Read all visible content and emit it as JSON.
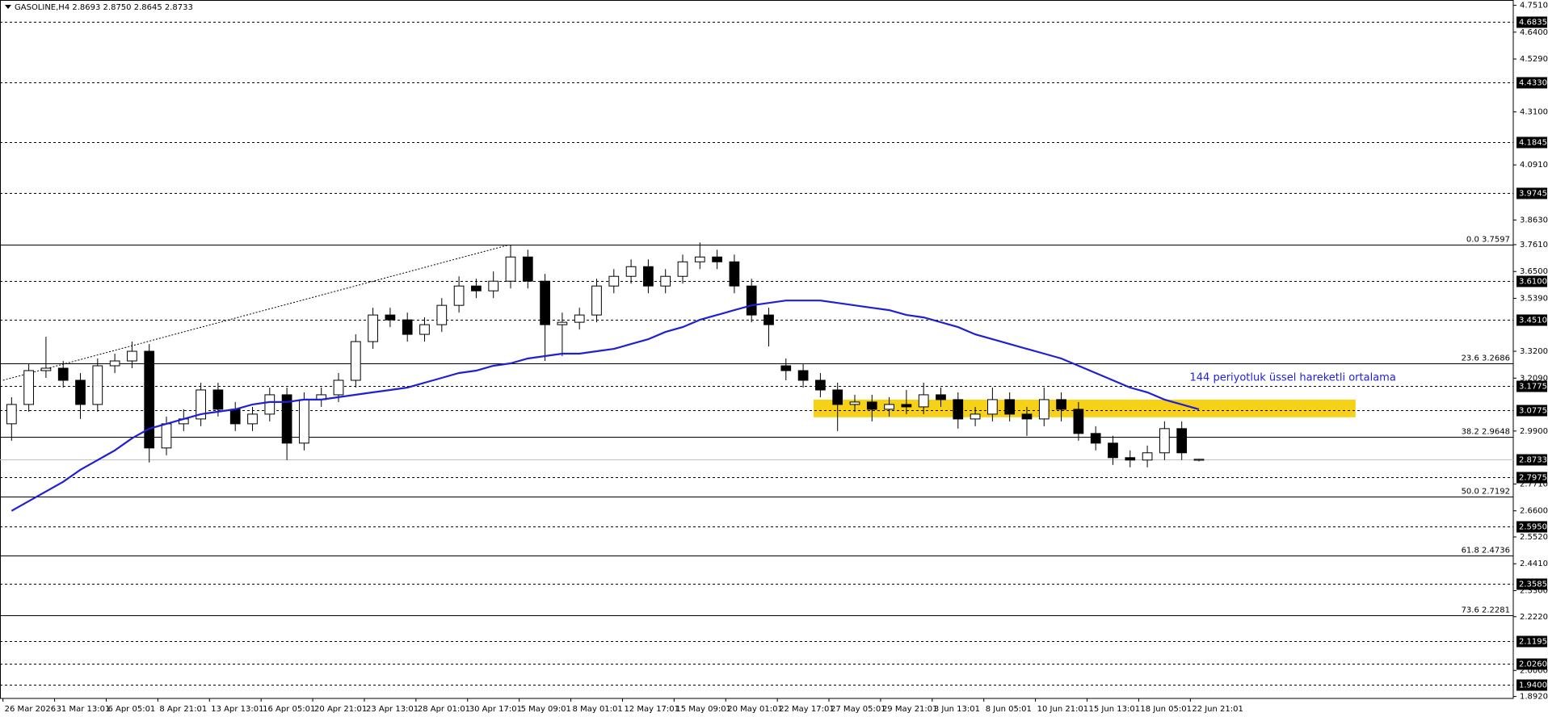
{
  "chart_data": {
    "type": "candlestick",
    "title": "GASOLINE,H4  2.8693 2.8750 2.8645 2.8733",
    "categories": [
      "26 Mar 2026",
      null,
      null,
      "31 Mar 13:01",
      null,
      null,
      "6 Apr 05:01",
      null,
      null,
      "8 Apr 21:01",
      null,
      null,
      "13 Apr 13:01",
      null,
      null,
      "16 Apr 05:01",
      null,
      null,
      "20 Apr 21:01",
      null,
      null,
      "23 Apr 13:01",
      null,
      null,
      "28 Apr 01:01",
      null,
      null,
      "30 Apr 17:01",
      null,
      null,
      "5 May 09:01",
      null,
      null,
      "8 May 01:01",
      null,
      null,
      "12 May 17:01",
      null,
      null,
      "15 May 09:01",
      null,
      null,
      "20 May 01:01",
      null,
      null,
      "22 May 17:01",
      null,
      null,
      "27 May 05:01",
      null,
      null,
      "29 May 21:01",
      null,
      null,
      "3 Jun 13:01",
      null,
      null,
      "8 Jun 05:01",
      null,
      null,
      "10 Jun 21:01",
      null,
      null,
      "15 Jun 13:01",
      null,
      null,
      "18 Jun 05:01",
      null,
      null,
      "22 Jun 21:01"
    ],
    "open": [
      3.02,
      3.1,
      3.24,
      3.25,
      3.2,
      3.1,
      3.26,
      3.28,
      3.32,
      2.92,
      3.02,
      3.04,
      3.16,
      3.08,
      3.02,
      3.06,
      3.14,
      2.94,
      3.12,
      3.14,
      3.2,
      3.36,
      3.47,
      3.45,
      3.39,
      3.43,
      3.51,
      3.59,
      3.57,
      3.61,
      3.71,
      3.61,
      3.43,
      3.44,
      3.47,
      3.59,
      3.63,
      3.67,
      3.59,
      3.63,
      3.69,
      3.71,
      3.69,
      3.59,
      3.47,
      3.26,
      3.24,
      3.2,
      3.16,
      3.1,
      3.11,
      3.08,
      3.1,
      3.09,
      3.14,
      3.12,
      3.04,
      3.06,
      3.12,
      3.06,
      3.04,
      3.12,
      3.08,
      2.98,
      2.94,
      2.88,
      2.87,
      2.9,
      3.0,
      2.8693
    ],
    "high": [
      3.13,
      3.27,
      3.38,
      3.28,
      3.23,
      3.29,
      3.31,
      3.36,
      3.35,
      3.05,
      3.08,
      3.19,
      3.19,
      3.11,
      3.09,
      3.17,
      3.17,
      3.15,
      3.17,
      3.23,
      3.39,
      3.5,
      3.5,
      3.48,
      3.46,
      3.54,
      3.63,
      3.62,
      3.65,
      3.76,
      3.74,
      3.64,
      3.48,
      3.5,
      3.62,
      3.66,
      3.7,
      3.7,
      3.66,
      3.72,
      3.77,
      3.74,
      3.72,
      3.62,
      3.5,
      3.29,
      3.27,
      3.23,
      3.19,
      3.14,
      3.14,
      3.13,
      3.16,
      3.19,
      3.17,
      3.15,
      3.09,
      3.17,
      3.15,
      3.09,
      3.17,
      3.15,
      3.11,
      3.01,
      2.97,
      2.91,
      2.93,
      3.03,
      3.03,
      2.875
    ],
    "low": [
      2.95,
      3.07,
      3.21,
      3.17,
      3.04,
      3.07,
      3.23,
      3.25,
      2.86,
      2.89,
      2.99,
      3.01,
      3.05,
      2.99,
      2.99,
      3.03,
      2.87,
      2.91,
      3.09,
      3.11,
      3.17,
      3.33,
      3.42,
      3.36,
      3.36,
      3.4,
      3.48,
      3.54,
      3.54,
      3.58,
      3.58,
      3.28,
      3.3,
      3.41,
      3.44,
      3.56,
      3.6,
      3.56,
      3.56,
      3.6,
      3.66,
      3.66,
      3.56,
      3.44,
      3.34,
      3.2,
      3.17,
      3.13,
      2.99,
      3.07,
      3.03,
      3.05,
      3.06,
      3.06,
      3.09,
      3.0,
      3.01,
      3.03,
      3.03,
      2.97,
      3.01,
      3.03,
      2.95,
      2.91,
      2.85,
      2.84,
      2.84,
      2.87,
      2.87,
      2.8645
    ],
    "close": [
      3.1,
      3.24,
      3.25,
      3.2,
      3.1,
      3.26,
      3.28,
      3.32,
      2.92,
      3.02,
      3.04,
      3.16,
      3.08,
      3.02,
      3.06,
      3.14,
      2.94,
      3.12,
      3.14,
      3.2,
      3.36,
      3.47,
      3.45,
      3.39,
      3.43,
      3.51,
      3.59,
      3.57,
      3.61,
      3.71,
      3.61,
      3.43,
      3.44,
      3.47,
      3.59,
      3.63,
      3.67,
      3.59,
      3.63,
      3.69,
      3.71,
      3.69,
      3.59,
      3.47,
      3.43,
      3.24,
      3.2,
      3.16,
      3.1,
      3.11,
      3.08,
      3.1,
      3.09,
      3.14,
      3.12,
      3.04,
      3.06,
      3.12,
      3.06,
      3.04,
      3.12,
      3.08,
      2.98,
      2.94,
      2.88,
      2.87,
      2.9,
      3.0,
      2.9,
      2.8733
    ],
    "up_color": "#ffffff",
    "down_color": "#000000",
    "ema_values": [
      2.66,
      2.7,
      2.74,
      2.78,
      2.83,
      2.87,
      2.91,
      2.96,
      3.0,
      3.02,
      3.04,
      3.06,
      3.07,
      3.08,
      3.1,
      3.11,
      3.11,
      3.12,
      3.12,
      3.13,
      3.14,
      3.15,
      3.16,
      3.17,
      3.19,
      3.21,
      3.23,
      3.24,
      3.26,
      3.27,
      3.29,
      3.3,
      3.31,
      3.31,
      3.32,
      3.33,
      3.35,
      3.37,
      3.4,
      3.42,
      3.45,
      3.47,
      3.49,
      3.51,
      3.52,
      3.53,
      3.53,
      3.53,
      3.52,
      3.51,
      3.5,
      3.49,
      3.47,
      3.46,
      3.44,
      3.42,
      3.39,
      3.37,
      3.35,
      3.33,
      3.31,
      3.29,
      3.26,
      3.23,
      3.2,
      3.17,
      3.15,
      3.12,
      3.1,
      3.08
    ],
    "ema_color": "#1f1fd6",
    "annotation": "144 periyotluk üssel hareketli ortalama",
    "annotation_color": "#2020e0",
    "zone": [
      3.047,
      3.12
    ],
    "zone_color": "#f7d117",
    "trendline": [
      3.2,
      3.7597
    ],
    "ylim": [
      1.884,
      4.773
    ],
    "yticks": [
      {
        "value": 4.751,
        "label": "4.7510"
      },
      {
        "value": 4.64,
        "label": "4.6400"
      },
      {
        "value": 4.529,
        "label": "4.5290"
      },
      {
        "value": 4.31,
        "label": "4.3100"
      },
      {
        "value": 4.091,
        "label": "4.0910"
      },
      {
        "value": 3.863,
        "label": "3.8630"
      },
      {
        "value": 3.761,
        "label": "3.7610"
      },
      {
        "value": 3.65,
        "label": "3.6500"
      },
      {
        "value": 3.539,
        "label": "3.5390"
      },
      {
        "value": 3.32,
        "label": "3.3200"
      },
      {
        "value": 3.209,
        "label": "3.2090"
      },
      {
        "value": 2.99,
        "label": "2.9900"
      },
      {
        "value": 2.771,
        "label": "2.7710"
      },
      {
        "value": 2.66,
        "label": "2.6600"
      },
      {
        "value": 2.552,
        "label": "2.5520"
      },
      {
        "value": 2.441,
        "label": "2.4410"
      },
      {
        "value": 2.33,
        "label": "2.3300"
      },
      {
        "value": 2.222,
        "label": "2.2220"
      },
      {
        "value": 2,
        "label": "2.0000"
      },
      {
        "value": 1.892,
        "label": "1.8920"
      }
    ],
    "levels": [
      {
        "value": 4.6835,
        "label": "4.6835"
      },
      {
        "value": 4.433,
        "label": "4.4330"
      },
      {
        "value": 4.1845,
        "label": "4.1845"
      },
      {
        "value": 3.9745,
        "label": "3.9745"
      },
      {
        "value": 3.61,
        "label": "3.6100"
      },
      {
        "value": 3.451,
        "label": "3.4510"
      },
      {
        "value": 3.1775,
        "label": "3.1775"
      },
      {
        "value": 3.0775,
        "label": "3.0775"
      },
      {
        "value": 2.7975,
        "label": "2.7975"
      },
      {
        "value": 2.595,
        "label": "2.5950"
      },
      {
        "value": 2.3585,
        "label": "2.3585"
      },
      {
        "value": 2.1195,
        "label": "2.1195"
      },
      {
        "value": 2.026,
        "label": "2.0260"
      },
      {
        "value": 1.94,
        "label": "1.9400"
      }
    ],
    "fib_levels": [
      {
        "value": 3.7597,
        "label": "0.0 3.7597"
      },
      {
        "value": 3.2686,
        "label": "23.6 3.2686"
      },
      {
        "value": 2.9648,
        "label": "38.2 2.9648"
      },
      {
        "value": 2.7192,
        "label": "50.0 2.7192"
      },
      {
        "value": 2.4736,
        "label": "61.8 2.4736"
      },
      {
        "value": 2.2281,
        "label": "73.6 2.2281"
      }
    ],
    "current_price": {
      "value": 2.8733,
      "label": "2.8733"
    }
  }
}
